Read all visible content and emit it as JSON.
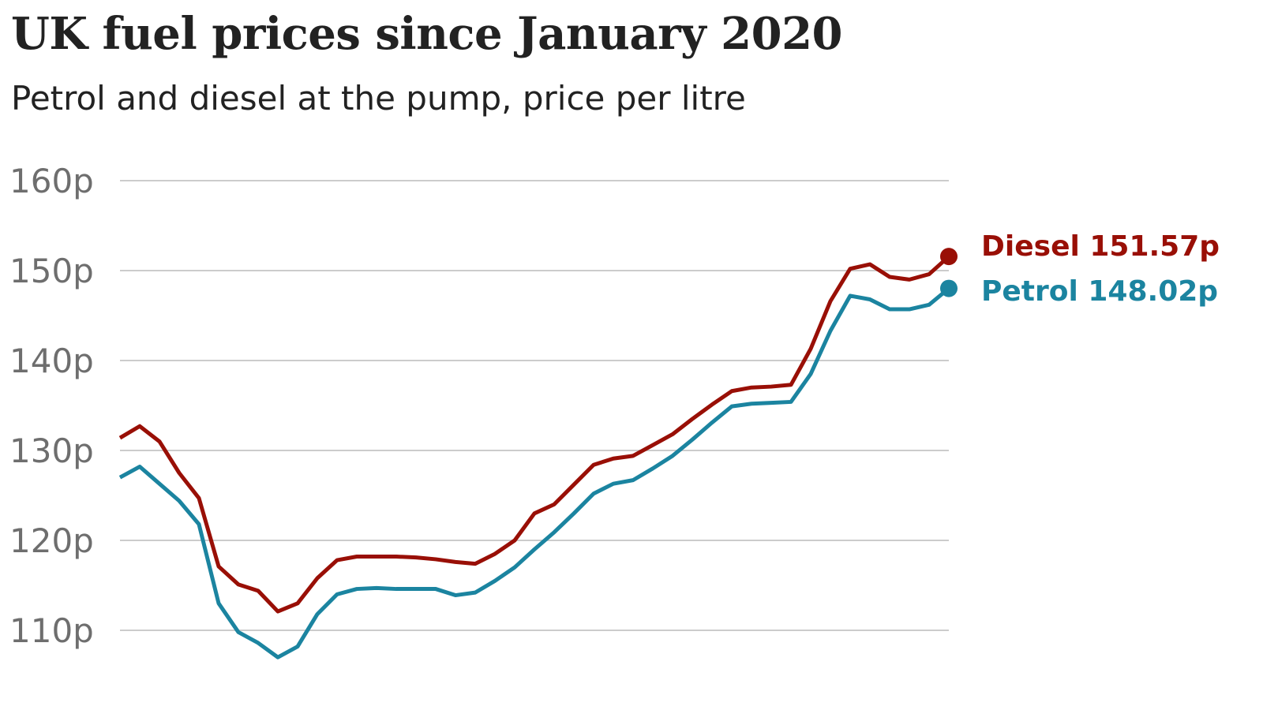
{
  "chart_data": {
    "type": "line",
    "title": "UK fuel prices since January 2020",
    "subtitle": "Petrol and diesel at the pump, price per litre",
    "xlabel": "",
    "ylabel": "",
    "ylim": [
      110,
      160
    ],
    "yticks": [
      160,
      150,
      140,
      130,
      120,
      110
    ],
    "ytick_labels": [
      "160p",
      "150p",
      "140p",
      "130p",
      "120p",
      "110p"
    ],
    "grid": true,
    "legend": "direct labels at line ends (right)",
    "series": [
      {
        "name": "Diesel",
        "label": "Diesel 151.57p",
        "color": "#990f06",
        "last_value": 151.57,
        "values": [
          131.4,
          132.7,
          131,
          127.5,
          124.7,
          117.1,
          115.1,
          114.4,
          112.1,
          113,
          115.8,
          117.8,
          118.2,
          118.2,
          118.2,
          118.1,
          117.9,
          117.6,
          117.4,
          118.5,
          120,
          123,
          124,
          126.2,
          128.4,
          129.1,
          129.4,
          130.6,
          131.8,
          133.5,
          135.1,
          136.6,
          137,
          137.1,
          137.3,
          141.3,
          146.6,
          150.2,
          150.7,
          149.3,
          149,
          149.6,
          151.57
        ]
      },
      {
        "name": "Petrol",
        "label": "Petrol 148.02p",
        "color": "#1b84a0",
        "last_value": 148.02,
        "values": [
          127,
          128.2,
          126.3,
          124.4,
          121.8,
          113,
          109.8,
          108.6,
          107,
          108.2,
          111.8,
          114,
          114.6,
          114.7,
          114.6,
          114.6,
          114.6,
          113.9,
          114.2,
          115.5,
          117,
          119,
          120.9,
          123,
          125.2,
          126.3,
          126.7,
          128,
          129.4,
          131.2,
          133.1,
          134.9,
          135.2,
          135.3,
          135.4,
          138.5,
          143.3,
          147.2,
          146.8,
          145.7,
          145.7,
          146.2,
          148.02
        ]
      }
    ],
    "gridline_color": "#cccccc"
  }
}
